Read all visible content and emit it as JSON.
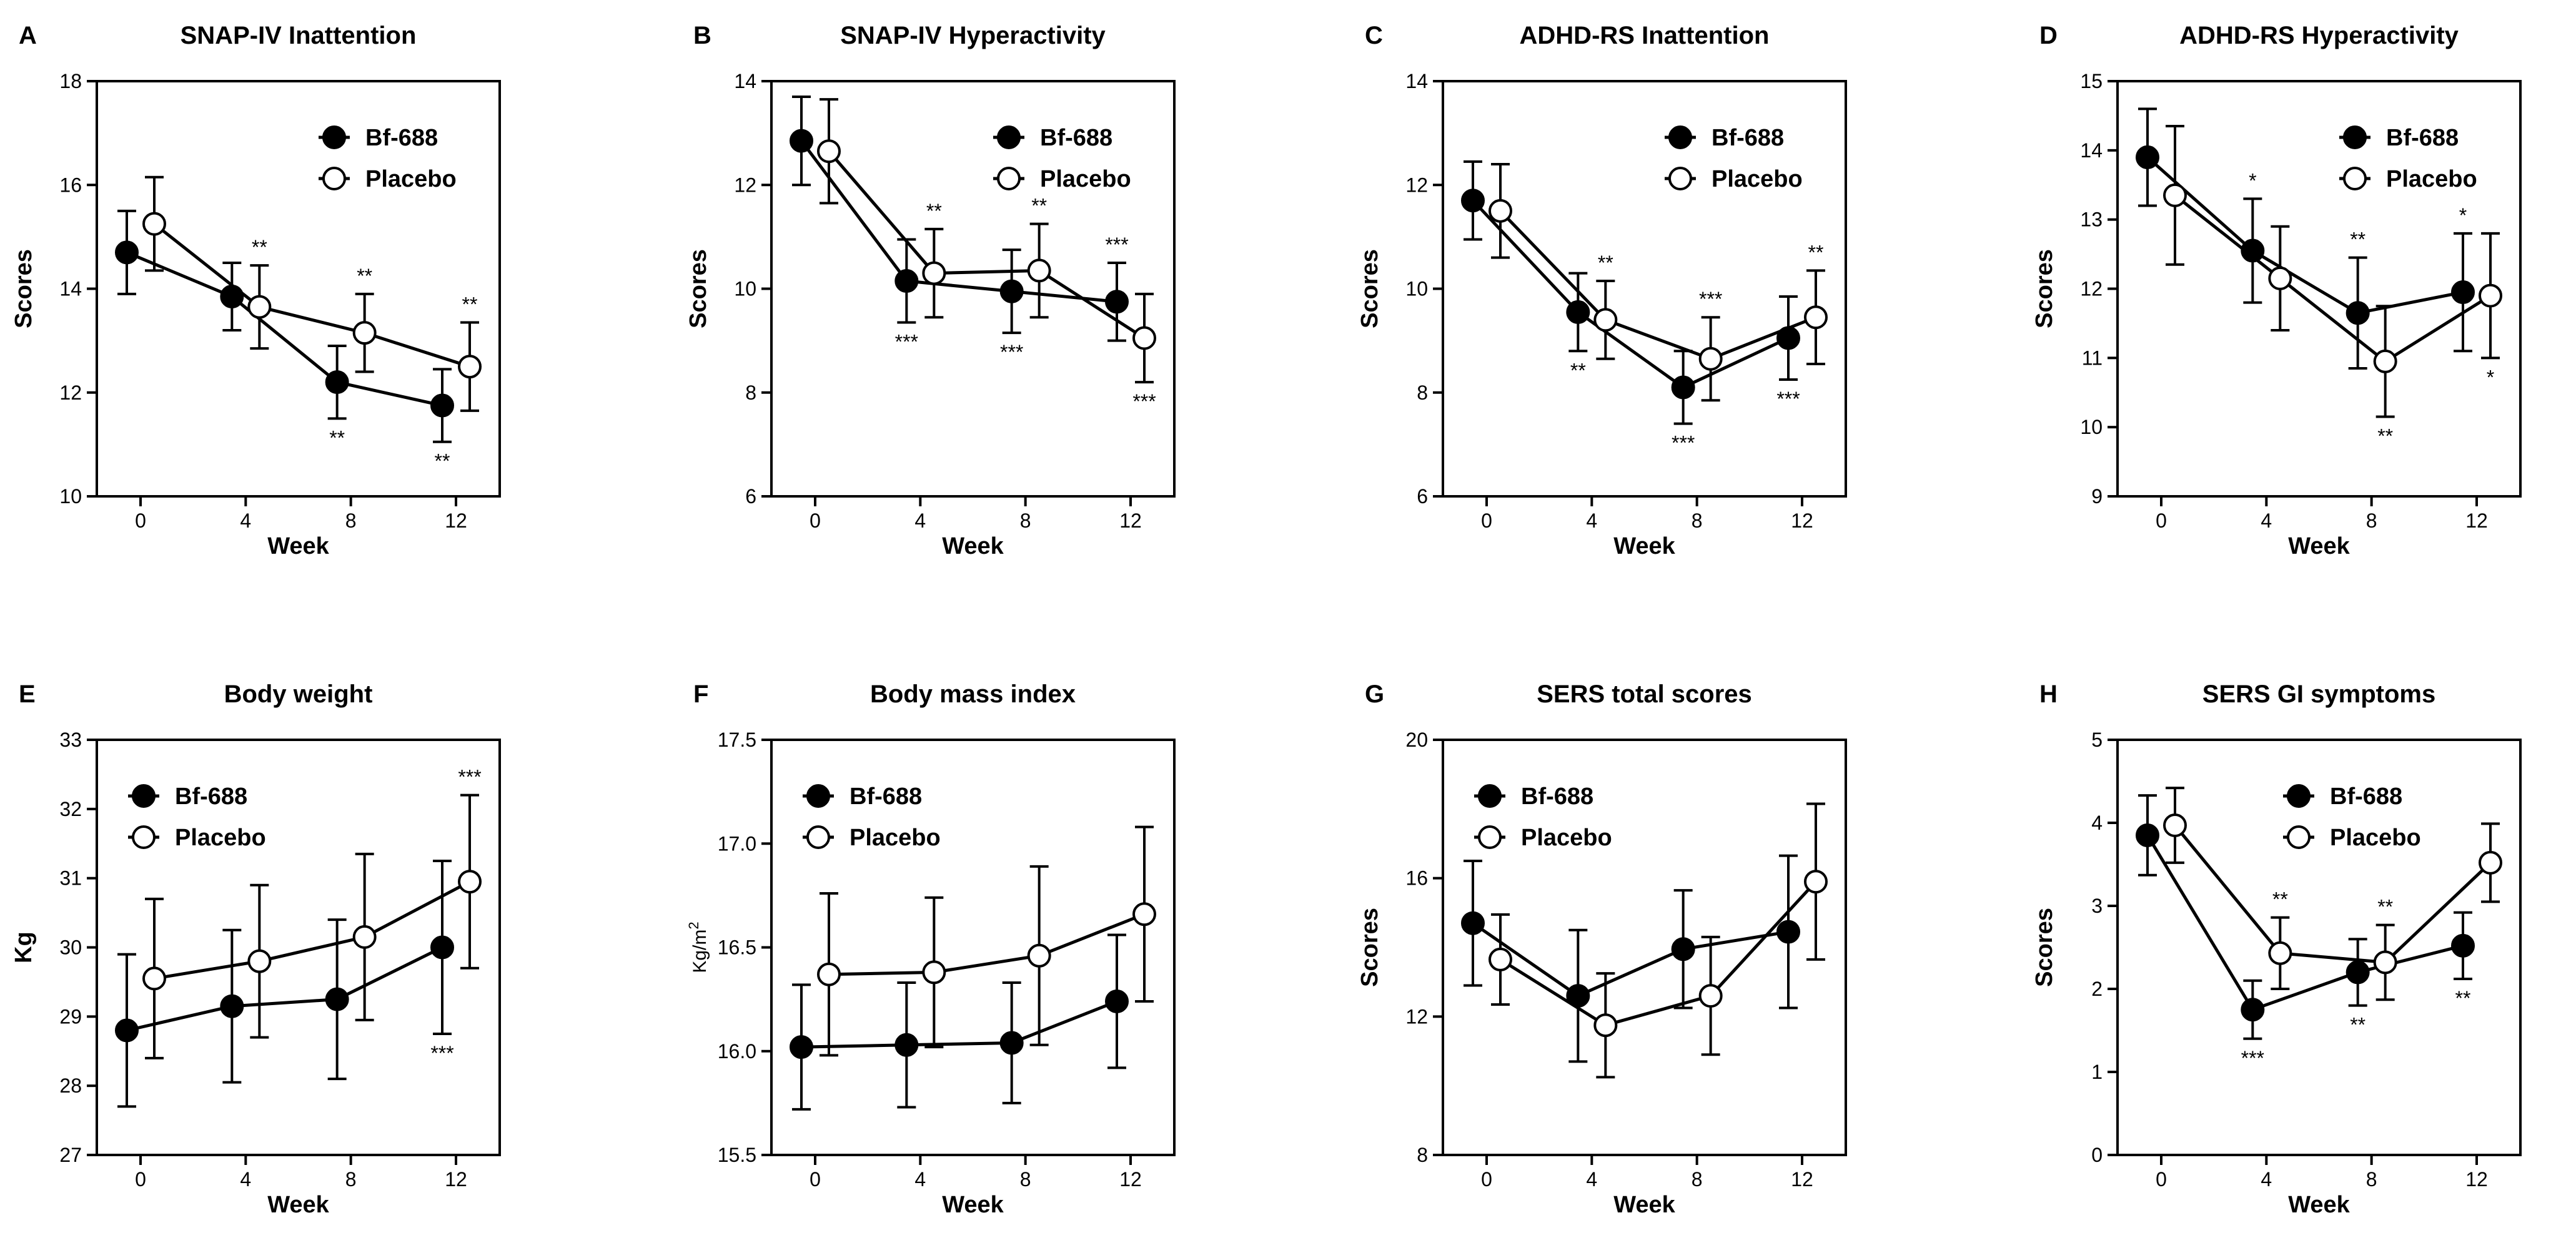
{
  "chart_data": [
    {
      "panel": "A",
      "type": "line",
      "title": "SNAP-IV Inattention",
      "xlabel": "Week",
      "ylabel": "Scores",
      "ylim": [
        10,
        18
      ],
      "yticks": [
        10,
        12,
        14,
        16,
        18
      ],
      "categories": [
        0,
        4,
        8,
        12
      ],
      "legend_position": "top-right",
      "series": [
        {
          "name": "Bf-688",
          "marker": "filled-circle",
          "values": [
            14.7,
            13.85,
            12.2,
            11.75
          ],
          "err": [
            0.8,
            0.65,
            0.7,
            0.7
          ]
        },
        {
          "name": "Placebo",
          "marker": "open-circle",
          "values": [
            15.25,
            13.65,
            13.15,
            12.5
          ],
          "err": [
            0.9,
            0.8,
            0.75,
            0.85
          ]
        }
      ],
      "annotations": [
        {
          "series": "Placebo",
          "index": 1,
          "text": "**",
          "pos": "above"
        },
        {
          "series": "Placebo",
          "index": 2,
          "text": "**",
          "pos": "above"
        },
        {
          "series": "Bf-688",
          "index": 2,
          "text": "**",
          "pos": "below"
        },
        {
          "series": "Placebo",
          "index": 3,
          "text": "**",
          "pos": "above"
        },
        {
          "series": "Bf-688",
          "index": 3,
          "text": "**",
          "pos": "below"
        }
      ]
    },
    {
      "panel": "B",
      "type": "line",
      "title": "SNAP-IV Hyperactivity",
      "xlabel": "Week",
      "ylabel": "Scores",
      "ylim": [
        6,
        14
      ],
      "yticks": [
        6,
        8,
        10,
        12,
        14
      ],
      "categories": [
        0,
        4,
        8,
        12
      ],
      "legend_position": "top-right",
      "series": [
        {
          "name": "Bf-688",
          "marker": "filled-circle",
          "values": [
            12.85,
            10.15,
            9.95,
            9.75
          ],
          "err": [
            0.85,
            0.8,
            0.8,
            0.75
          ]
        },
        {
          "name": "Placebo",
          "marker": "open-circle",
          "values": [
            12.65,
            10.3,
            10.35,
            9.05
          ],
          "err": [
            1.0,
            0.85,
            0.9,
            0.85
          ]
        }
      ],
      "annotations": [
        {
          "series": "Placebo",
          "index": 1,
          "text": "**",
          "pos": "above"
        },
        {
          "series": "Bf-688",
          "index": 1,
          "text": "***",
          "pos": "below"
        },
        {
          "series": "Placebo",
          "index": 2,
          "text": "**",
          "pos": "above"
        },
        {
          "series": "Bf-688",
          "index": 2,
          "text": "***",
          "pos": "below"
        },
        {
          "series": "Bf-688",
          "index": 3,
          "text": "***",
          "pos": "above"
        },
        {
          "series": "Placebo",
          "index": 3,
          "text": "***",
          "pos": "below"
        }
      ]
    },
    {
      "panel": "C",
      "type": "line",
      "title": "ADHD-RS Inattention",
      "xlabel": "Week",
      "ylabel": "Scores",
      "ylim": [
        6,
        14
      ],
      "yticks": [
        6,
        8,
        10,
        12,
        14
      ],
      "categories": [
        0,
        4,
        8,
        12
      ],
      "legend_position": "top-right",
      "series": [
        {
          "name": "Bf-688",
          "marker": "filled-circle",
          "values": [
            11.7,
            9.55,
            8.1,
            9.05
          ],
          "err": [
            0.75,
            0.75,
            0.7,
            0.8
          ]
        },
        {
          "name": "Placebo",
          "marker": "open-circle",
          "values": [
            11.5,
            9.4,
            8.65,
            9.45
          ],
          "err": [
            0.9,
            0.75,
            0.8,
            0.9
          ]
        }
      ],
      "annotations": [
        {
          "series": "Placebo",
          "index": 1,
          "text": "**",
          "pos": "above"
        },
        {
          "series": "Bf-688",
          "index": 1,
          "text": "**",
          "pos": "below"
        },
        {
          "series": "Placebo",
          "index": 2,
          "text": "***",
          "pos": "above"
        },
        {
          "series": "Bf-688",
          "index": 2,
          "text": "***",
          "pos": "below"
        },
        {
          "series": "Placebo",
          "index": 3,
          "text": "**",
          "pos": "above"
        },
        {
          "series": "Bf-688",
          "index": 3,
          "text": "***",
          "pos": "below"
        }
      ]
    },
    {
      "panel": "D",
      "type": "line",
      "title": "ADHD-RS Hyperactivity",
      "xlabel": "Week",
      "ylabel": "Scores",
      "ylim": [
        9,
        15
      ],
      "yticks": [
        9,
        10,
        11,
        12,
        13,
        14,
        15
      ],
      "categories": [
        0,
        4,
        8,
        12
      ],
      "legend_position": "top-right",
      "series": [
        {
          "name": "Bf-688",
          "marker": "filled-circle",
          "values": [
            13.9,
            12.55,
            11.65,
            11.95
          ],
          "err": [
            0.7,
            0.75,
            0.8,
            0.85
          ]
        },
        {
          "name": "Placebo",
          "marker": "open-circle",
          "values": [
            13.35,
            12.15,
            10.95,
            11.9
          ],
          "err": [
            1.0,
            0.75,
            0.8,
            0.9
          ]
        }
      ],
      "annotations": [
        {
          "series": "Bf-688",
          "index": 1,
          "text": "*",
          "pos": "above"
        },
        {
          "series": "Bf-688",
          "index": 2,
          "text": "**",
          "pos": "above"
        },
        {
          "series": "Placebo",
          "index": 2,
          "text": "**",
          "pos": "below"
        },
        {
          "series": "Bf-688",
          "index": 3,
          "text": "*",
          "pos": "above"
        },
        {
          "series": "Placebo",
          "index": 3,
          "text": "*",
          "pos": "below"
        }
      ]
    },
    {
      "panel": "E",
      "type": "line",
      "title": "Body weight",
      "xlabel": "Week",
      "ylabel": "Kg",
      "ylim": [
        27,
        33
      ],
      "yticks": [
        27,
        28,
        29,
        30,
        31,
        32,
        33
      ],
      "categories": [
        0,
        4,
        8,
        12
      ],
      "legend_position": "top-left",
      "series": [
        {
          "name": "Bf-688",
          "marker": "filled-circle",
          "values": [
            28.8,
            29.15,
            29.25,
            30.0
          ],
          "err": [
            1.1,
            1.1,
            1.15,
            1.25
          ]
        },
        {
          "name": "Placebo",
          "marker": "open-circle",
          "values": [
            29.55,
            29.8,
            30.15,
            30.95
          ],
          "err": [
            1.15,
            1.1,
            1.2,
            1.25
          ]
        }
      ],
      "annotations": [
        {
          "series": "Placebo",
          "index": 3,
          "text": "***",
          "pos": "above"
        },
        {
          "series": "Bf-688",
          "index": 3,
          "text": "***",
          "pos": "below"
        }
      ]
    },
    {
      "panel": "F",
      "type": "line",
      "title": "Body mass index",
      "xlabel": "Week",
      "ylabel": "Kg/m2",
      "ylim": [
        15.5,
        17.5
      ],
      "yticks": [
        "15.5",
        "16.0",
        "16.5",
        "17.0",
        "17.5"
      ],
      "categories": [
        0,
        4,
        8,
        12
      ],
      "legend_position": "top-left",
      "series": [
        {
          "name": "Bf-688",
          "marker": "filled-circle",
          "values": [
            16.02,
            16.03,
            16.04,
            16.24
          ],
          "err": [
            0.3,
            0.3,
            0.29,
            0.32
          ]
        },
        {
          "name": "Placebo",
          "marker": "open-circle",
          "values": [
            16.37,
            16.38,
            16.46,
            16.66
          ],
          "err": [
            0.39,
            0.36,
            0.43,
            0.42
          ]
        }
      ],
      "annotations": []
    },
    {
      "panel": "G",
      "type": "line",
      "title": "SERS total scores",
      "xlabel": "Week",
      "ylabel": "Scores",
      "ylim": [
        8,
        20
      ],
      "yticks": [
        8,
        12,
        16,
        20
      ],
      "categories": [
        0,
        4,
        8,
        12
      ],
      "legend_position": "top-left",
      "series": [
        {
          "name": "Bf-688",
          "marker": "filled-circle",
          "values": [
            14.7,
            12.6,
            13.95,
            14.45
          ],
          "err": [
            1.8,
            1.9,
            1.7,
            2.2
          ]
        },
        {
          "name": "Placebo",
          "marker": "open-circle",
          "values": [
            13.65,
            11.75,
            12.6,
            15.9
          ],
          "err": [
            1.3,
            1.5,
            1.7,
            2.25
          ]
        }
      ],
      "annotations": []
    },
    {
      "panel": "H",
      "type": "line",
      "title": "SERS GI symptoms",
      "xlabel": "Week",
      "ylabel": "Scores",
      "ylim": [
        0,
        5
      ],
      "yticks": [
        0,
        1,
        2,
        3,
        4,
        5
      ],
      "categories": [
        0,
        4,
        8,
        12
      ],
      "legend_position": "top-center",
      "series": [
        {
          "name": "Bf-688",
          "marker": "filled-circle",
          "values": [
            3.85,
            1.75,
            2.2,
            2.52
          ],
          "err": [
            0.48,
            0.35,
            0.4,
            0.4
          ]
        },
        {
          "name": "Placebo",
          "marker": "open-circle",
          "values": [
            3.97,
            2.43,
            2.32,
            3.52
          ],
          "err": [
            0.45,
            0.43,
            0.45,
            0.47
          ]
        }
      ],
      "annotations": [
        {
          "series": "Placebo",
          "index": 1,
          "text": "**",
          "pos": "above"
        },
        {
          "series": "Bf-688",
          "index": 1,
          "text": "***",
          "pos": "below"
        },
        {
          "series": "Placebo",
          "index": 2,
          "text": "**",
          "pos": "above"
        },
        {
          "series": "Bf-688",
          "index": 2,
          "text": "**",
          "pos": "below"
        },
        {
          "series": "Bf-688",
          "index": 3,
          "text": "**",
          "pos": "below"
        }
      ]
    }
  ]
}
